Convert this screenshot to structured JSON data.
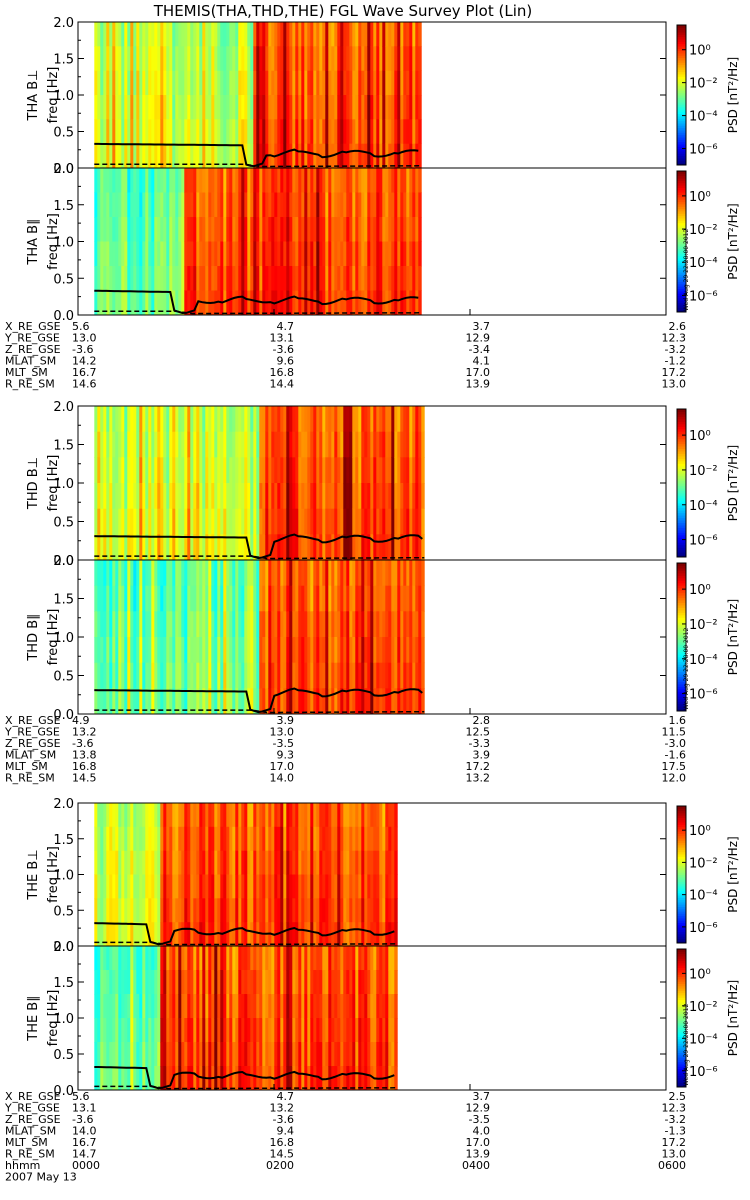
{
  "chart_data": {
    "type": "heatmap",
    "title": "THEMIS(THA,THD,THE) FGL Wave Survey Plot (Lin)",
    "colorbar": {
      "label": "PSD [nT²/Hz]",
      "ticks": [
        "10⁰",
        "10⁻²",
        "10⁻⁴",
        "10⁻⁶"
      ],
      "tick_exponents": [
        0,
        -2,
        -4,
        -6
      ],
      "range_log10": [
        -7,
        1.5
      ]
    },
    "yaxis": {
      "label": "freq [Hz]",
      "ylim": [
        0,
        2.0
      ],
      "ticks": [
        "0.0",
        "0.5",
        "1.0",
        "1.5",
        "2.0"
      ]
    },
    "stamp": "Wed Aug 29 22:28:00 2012",
    "panels": [
      {
        "probe": "THA",
        "component": "B⊥",
        "ylabel": "THA B⊥",
        "data_start_hhmm": "0010",
        "data_end_hhmm": "0330",
        "active_start_hhmm": "0147",
        "line_pre": 0.33,
        "line_post": 0.2,
        "colorbar": true
      },
      {
        "probe": "THA",
        "component": "B∥",
        "ylabel": "THA B∥",
        "data_start_hhmm": "0010",
        "data_end_hhmm": "0330",
        "active_start_hhmm": "0105",
        "line_pre": 0.33,
        "line_post": 0.2,
        "colorbar": true,
        "stamp": true
      },
      {
        "probe": "THD",
        "component": "B⊥",
        "ylabel": "THD B⊥",
        "data_start_hhmm": "0010",
        "data_end_hhmm": "0332",
        "active_start_hhmm": "0151",
        "line_pre": 0.31,
        "line_post": 0.28,
        "colorbar": true
      },
      {
        "probe": "THD",
        "component": "B∥",
        "ylabel": "THD B∥",
        "data_start_hhmm": "0010",
        "data_end_hhmm": "0332",
        "active_start_hhmm": "0151",
        "line_pre": 0.31,
        "line_post": 0.28,
        "colorbar": true,
        "stamp": true
      },
      {
        "probe": "THE",
        "component": "B⊥",
        "ylabel": "THE B⊥",
        "data_start_hhmm": "0010",
        "data_end_hhmm": "0315",
        "active_start_hhmm": "0050",
        "line_pre": 0.32,
        "line_post": 0.2,
        "colorbar": true
      },
      {
        "probe": "THE",
        "component": "B∥",
        "ylabel": "THE B∥",
        "data_start_hhmm": "0010",
        "data_end_hhmm": "0315",
        "active_start_hhmm": "0050",
        "line_pre": 0.32,
        "line_post": 0.2,
        "colorbar": true,
        "stamp": true
      }
    ],
    "ephemeris_labels": [
      "X_RE_GSE",
      "Y_RE_GSE",
      "Z_RE_GSE",
      "MLAT_SM",
      "MLT_SM",
      "R_RE_SM"
    ],
    "ephemeris": [
      {
        "probe": "THA",
        "rows": [
          [
            "5.6",
            "4.7",
            "3.7",
            "2.6"
          ],
          [
            "13.0",
            "13.1",
            "12.9",
            "12.3"
          ],
          [
            "-3.6",
            "-3.6",
            "-3.4",
            "-3.2"
          ],
          [
            "14.2",
            "9.6",
            "4.1",
            "-1.2"
          ],
          [
            "16.7",
            "16.8",
            "17.0",
            "17.2"
          ],
          [
            "14.6",
            "14.4",
            "13.9",
            "13.0"
          ]
        ]
      },
      {
        "probe": "THD",
        "rows": [
          [
            "4.9",
            "3.9",
            "2.8",
            "1.6"
          ],
          [
            "13.2",
            "13.0",
            "12.5",
            "11.5"
          ],
          [
            "-3.6",
            "-3.5",
            "-3.3",
            "-3.0"
          ],
          [
            "13.8",
            "9.3",
            "3.9",
            "-1.6"
          ],
          [
            "16.8",
            "17.0",
            "17.2",
            "17.5"
          ],
          [
            "14.5",
            "14.0",
            "13.2",
            "12.0"
          ]
        ]
      },
      {
        "probe": "THE",
        "rows": [
          [
            "5.6",
            "4.7",
            "3.7",
            "2.5"
          ],
          [
            "13.1",
            "13.2",
            "12.9",
            "12.3"
          ],
          [
            "-3.6",
            "-3.6",
            "-3.5",
            "-3.2"
          ],
          [
            "14.0",
            "9.4",
            "4.0",
            "-1.3"
          ],
          [
            "16.7",
            "16.8",
            "17.0",
            "17.2"
          ],
          [
            "14.7",
            "14.5",
            "13.9",
            "13.0"
          ]
        ]
      }
    ],
    "time_axis": {
      "label": "hhmm",
      "ticks": [
        "0000",
        "0200",
        "0400",
        "0600"
      ],
      "range_hhmm": [
        "0000",
        "0600"
      ]
    },
    "date": "2007 May 13"
  }
}
